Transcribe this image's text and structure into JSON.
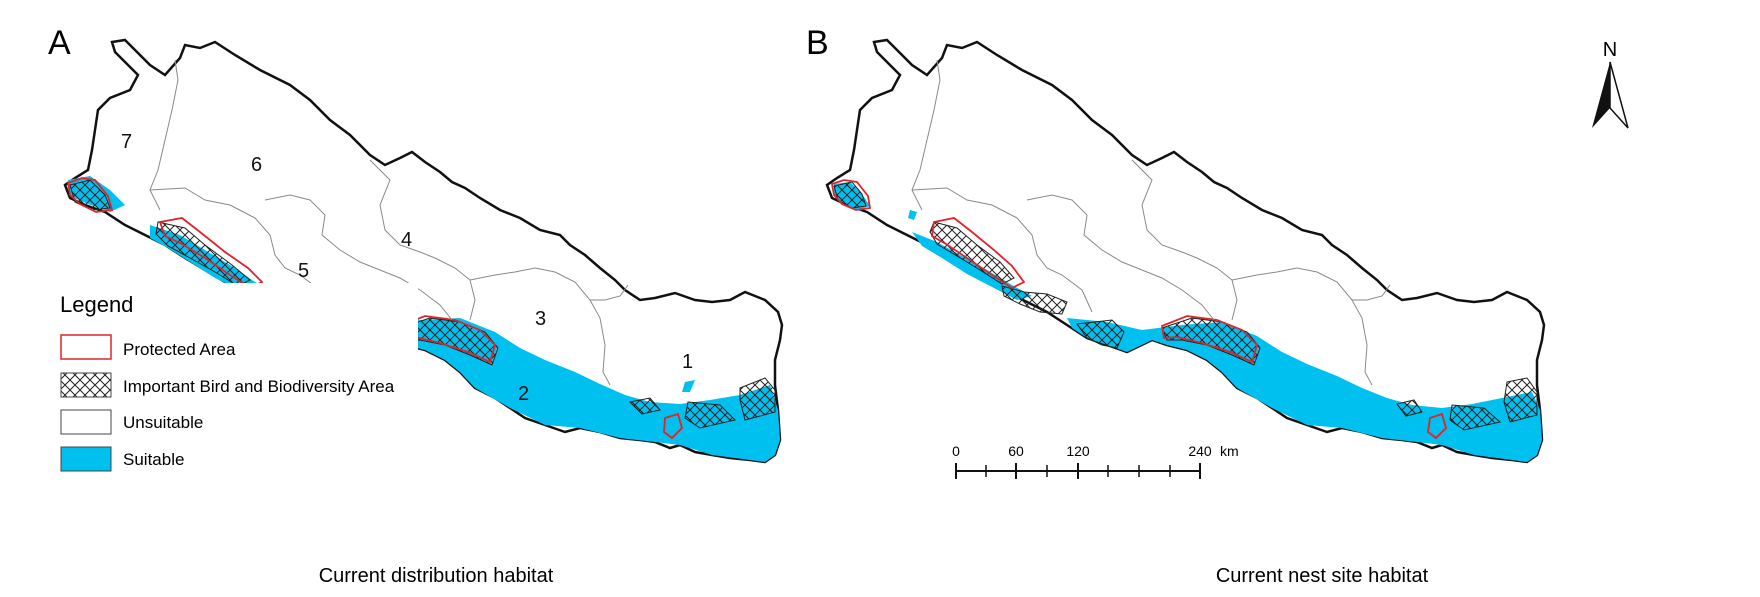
{
  "panels": [
    {
      "letter": "A",
      "caption": "Current distribution habitat",
      "province_labels": [
        "7",
        "6",
        "4",
        "5",
        "3",
        "1",
        "2"
      ]
    },
    {
      "letter": "B",
      "caption": "Current nest site habitat"
    }
  ],
  "legend": {
    "title": "Legend",
    "items": [
      {
        "label": "Protected Area",
        "swatch": "protected"
      },
      {
        "label": "Important Bird and Biodiversity Area",
        "swatch": "iba"
      },
      {
        "label": "Unsuitable",
        "swatch": "unsuitable"
      },
      {
        "label": "Suitable",
        "swatch": "suitable"
      }
    ]
  },
  "north_arrow": {
    "label": "N",
    "icon": "north-arrow-icon"
  },
  "scale_bar": {
    "ticks": [
      "0",
      "60",
      "120",
      "240"
    ],
    "unit": "km"
  },
  "colors": {
    "suitable": "#00c0f0",
    "protected": "#e0242a",
    "iba_hatch": "#222222",
    "border": "#111111",
    "province_lines": "#8a8a8a"
  }
}
